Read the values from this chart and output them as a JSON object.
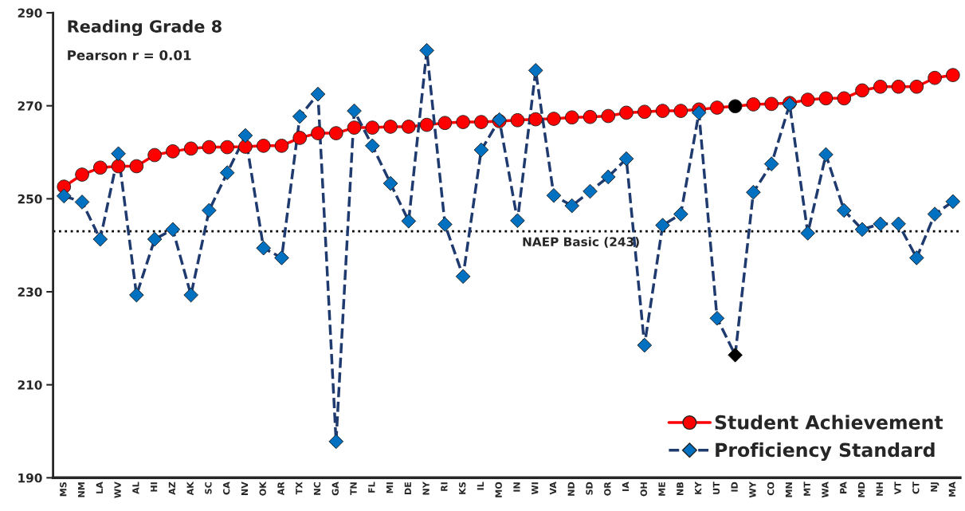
{
  "chart_data": {
    "type": "line",
    "title": "Reading Grade 8",
    "subtitle": "Pearson r = 0.01",
    "categories": [
      "MS",
      "NM",
      "LA",
      "WV",
      "AL",
      "HI",
      "AZ",
      "AK",
      "SC",
      "CA",
      "NV",
      "OK",
      "AR",
      "TX",
      "NC",
      "GA",
      "TN",
      "FL",
      "MI",
      "DE",
      "NY",
      "RI",
      "KS",
      "IL",
      "MO",
      "IN",
      "WI",
      "VA",
      "ND",
      "SD",
      "OR",
      "IA",
      "OH",
      "ME",
      "NB",
      "KY",
      "UT",
      "ID",
      "WY",
      "CO",
      "MN",
      "MT",
      "WA",
      "PA",
      "MD",
      "NH",
      "VT",
      "CT",
      "NJ",
      "MA"
    ],
    "series": [
      {
        "name": "Student Achievement",
        "color": "#ff0000",
        "marker": "circle",
        "line_style": "solid",
        "colors": [
          "#ff0000",
          "#ff0000",
          "#ff0000",
          "#ff0000",
          "#ff0000",
          "#ff0000",
          "#ff0000",
          "#ff0000",
          "#ff0000",
          "#ff0000",
          "#ff0000",
          "#ff0000",
          "#ff0000",
          "#ff0000",
          "#ff0000",
          "#ff0000",
          "#ff0000",
          "#ff0000",
          "#ff0000",
          "#ff0000",
          "#ff0000",
          "#ff0000",
          "#ff0000",
          "#ff0000",
          "#ff0000",
          "#ff0000",
          "#ff0000",
          "#ff0000",
          "#ff0000",
          "#ff0000",
          "#ff0000",
          "#ff0000",
          "#ff0000",
          "#ff0000",
          "#ff0000",
          "#ff0000",
          "#ff0000",
          "#000000",
          "#ff0000",
          "#ff0000",
          "#ff0000",
          "#ff0000",
          "#ff0000",
          "#ff0000",
          "#ff0000",
          "#ff0000",
          "#ff0000",
          "#ff0000",
          "#ff0000",
          "#ff0000"
        ],
        "values": [
          252.6,
          255.2,
          256.7,
          257,
          257,
          259.4,
          260.2,
          260.8,
          261.1,
          261.1,
          261.2,
          261.4,
          261.4,
          263.1,
          264.1,
          264.1,
          265.3,
          265.3,
          265.5,
          265.5,
          265.9,
          266.3,
          266.5,
          266.5,
          266.7,
          266.9,
          267.1,
          267.2,
          267.5,
          267.6,
          267.8,
          268.5,
          268.7,
          268.9,
          268.9,
          269.2,
          269.6,
          269.9,
          270.3,
          270.4,
          270.6,
          271.3,
          271.6,
          271.6,
          273.3,
          274.1,
          274.1,
          274.1,
          276,
          276.6
        ]
      },
      {
        "name": "Proficiency Standard",
        "color": "#1f3a6e",
        "marker": "diamond",
        "line_style": "dashed",
        "colors": [
          "#0070c0",
          "#0070c0",
          "#0070c0",
          "#0070c0",
          "#0070c0",
          "#0070c0",
          "#0070c0",
          "#0070c0",
          "#0070c0",
          "#0070c0",
          "#0070c0",
          "#0070c0",
          "#0070c0",
          "#0070c0",
          "#0070c0",
          "#0070c0",
          "#0070c0",
          "#0070c0",
          "#0070c0",
          "#0070c0",
          "#0070c0",
          "#0070c0",
          "#0070c0",
          "#0070c0",
          "#0070c0",
          "#0070c0",
          "#0070c0",
          "#0070c0",
          "#0070c0",
          "#0070c0",
          "#0070c0",
          "#0070c0",
          "#0070c0",
          "#0070c0",
          "#0070c0",
          "#0070c0",
          "#0070c0",
          "#000000",
          "#0070c0",
          "#0070c0",
          "#0070c0",
          "#0070c0",
          "#0070c0",
          "#0070c0",
          "#0070c0",
          "#0070c0",
          "#0070c0",
          "#0070c0",
          "#0070c0",
          "#0070c0"
        ],
        "values": [
          250.6,
          249.3,
          241.3,
          259.7,
          229.3,
          241.3,
          243.4,
          229.3,
          247.5,
          255.6,
          263.6,
          239.4,
          237.3,
          267.7,
          272.5,
          197.8,
          268.9,
          261.4,
          253.3,
          245.2,
          281.9,
          244.5,
          233.3,
          260.5,
          267,
          245.3,
          277.6,
          250.7,
          248.5,
          251.6,
          254.7,
          258.6,
          218.5,
          244.3,
          246.7,
          268.5,
          224.3,
          216.4,
          251.4,
          257.5,
          270.3,
          242.6,
          259.5,
          247.5,
          243.4,
          244.6,
          244.6,
          237.3,
          246.7,
          249.4
        ]
      }
    ],
    "ylim": [
      190,
      290
    ],
    "yticks": [
      190,
      210,
      230,
      250,
      270,
      290
    ],
    "grid": false,
    "legend": "bottom right",
    "ref_lines": [
      {
        "axis": "y",
        "value": 243,
        "label": "NAEP Basic (243)",
        "color": "#000000",
        "line_style": "dotted"
      }
    ]
  }
}
